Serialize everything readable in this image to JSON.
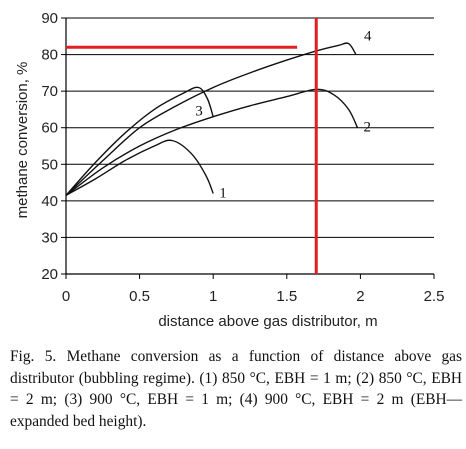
{
  "chart_data": {
    "type": "line",
    "xlabel": "distance above gas distributor, m",
    "ylabel": "methane conversion, %",
    "xlim": [
      0,
      2.5
    ],
    "ylim": [
      20,
      90
    ],
    "x_ticks": [
      "0",
      "0.5",
      "1",
      "1.5",
      "2",
      "2.5"
    ],
    "y_ticks": [
      "20",
      "30",
      "40",
      "50",
      "60",
      "70",
      "80",
      "90"
    ],
    "grid": "horizontal",
    "series": [
      {
        "name": "1",
        "x": [
          0,
          0.2,
          0.4,
          0.6,
          0.72,
          0.85,
          0.95,
          1.0
        ],
        "y": [
          41.5,
          46,
          51,
          55,
          56.5,
          53,
          47,
          42
        ]
      },
      {
        "name": "2",
        "x": [
          0,
          0.25,
          0.5,
          0.75,
          1.0,
          1.25,
          1.5,
          1.7,
          1.82,
          1.92,
          1.98
        ],
        "y": [
          41.5,
          49,
          55,
          59.5,
          63,
          66,
          68.5,
          70.5,
          69,
          65,
          60
        ]
      },
      {
        "name": "3",
        "x": [
          0,
          0.2,
          0.4,
          0.6,
          0.8,
          0.9,
          0.96,
          1.0
        ],
        "y": [
          41.5,
          50.5,
          58.5,
          65,
          69.5,
          71,
          68,
          63
        ]
      },
      {
        "name": "4",
        "x": [
          0,
          0.25,
          0.5,
          0.75,
          1.0,
          1.25,
          1.5,
          1.7,
          1.85,
          1.92,
          1.97
        ],
        "y": [
          41.5,
          51,
          60,
          66,
          71,
          75,
          78.5,
          81,
          82.5,
          83,
          80
        ]
      }
    ],
    "reference_lines": [
      {
        "orientation": "horizontal",
        "y": 82,
        "x_range": [
          0,
          1.57
        ],
        "color": "#e41e1e"
      },
      {
        "orientation": "vertical",
        "x": 1.7,
        "y_range": [
          20,
          90
        ],
        "color": "#e41e1e"
      }
    ]
  },
  "caption": "Fig. 5. Methane conversion as a function of distance above gas distributor (bubbling regime). (1) 850 °C, EBH = 1 m; (2) 850 °C, EBH = 2 m; (3) 900 °C, EBH = 1 m; (4) 900 °C, EBH = 2 m (EBH—expanded bed height).",
  "colors": {
    "curves": "#111111",
    "annotation": "#e41e1e",
    "grid": "#000000"
  }
}
